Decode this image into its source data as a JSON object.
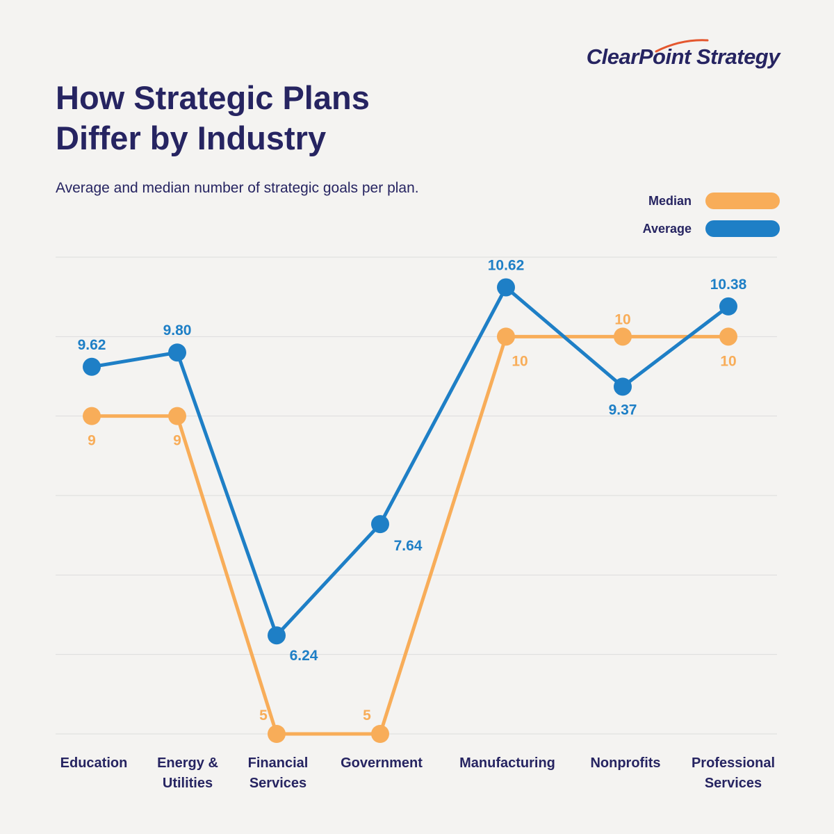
{
  "brand": {
    "name": "ClearPoint Strategy"
  },
  "title_line1": "How Strategic Plans",
  "title_line2": "Differ by Industry",
  "subtitle": "Average and median number of strategic goals per plan.",
  "colors": {
    "median": "#f8ad59",
    "average": "#1e7fc6",
    "text": "#262461",
    "grid": "#dcdcdc",
    "background": "#f4f3f1",
    "accent": "#e4572e"
  },
  "legend": [
    {
      "label": "Median",
      "color": "#f8ad59"
    },
    {
      "label": "Average",
      "color": "#1e7fc6"
    }
  ],
  "chart_data": {
    "type": "line",
    "title": "How Strategic Plans Differ by Industry",
    "subtitle": "Average and median number of strategic goals per plan.",
    "categories": [
      [
        "Education"
      ],
      [
        "Energy &",
        "Utilities"
      ],
      [
        "Financial",
        "Services"
      ],
      [
        "Government"
      ],
      [
        "Manufacturing"
      ],
      [
        "Nonprofits"
      ],
      [
        "Professional",
        "Services"
      ]
    ],
    "ylim": [
      5,
      11
    ],
    "grid": true,
    "legend_position": "top-right",
    "series": [
      {
        "name": "Median",
        "color": "#f8ad59",
        "values": [
          9,
          9,
          5,
          5,
          10,
          10,
          10
        ],
        "labels": [
          "9",
          "9",
          "5",
          "5",
          "10",
          "10",
          "10"
        ],
        "label_pos": [
          "below",
          "below",
          "above",
          "above",
          "below",
          "above",
          "below"
        ]
      },
      {
        "name": "Average",
        "color": "#1e7fc6",
        "values": [
          9.62,
          9.8,
          6.24,
          7.64,
          10.62,
          9.37,
          10.38
        ],
        "labels": [
          "9.62",
          "9.80",
          "6.24",
          "7.64",
          "10.62",
          "9.37",
          "10.38"
        ],
        "label_pos": [
          "above",
          "above",
          "below",
          "below",
          "above",
          "below",
          "above"
        ]
      }
    ]
  }
}
